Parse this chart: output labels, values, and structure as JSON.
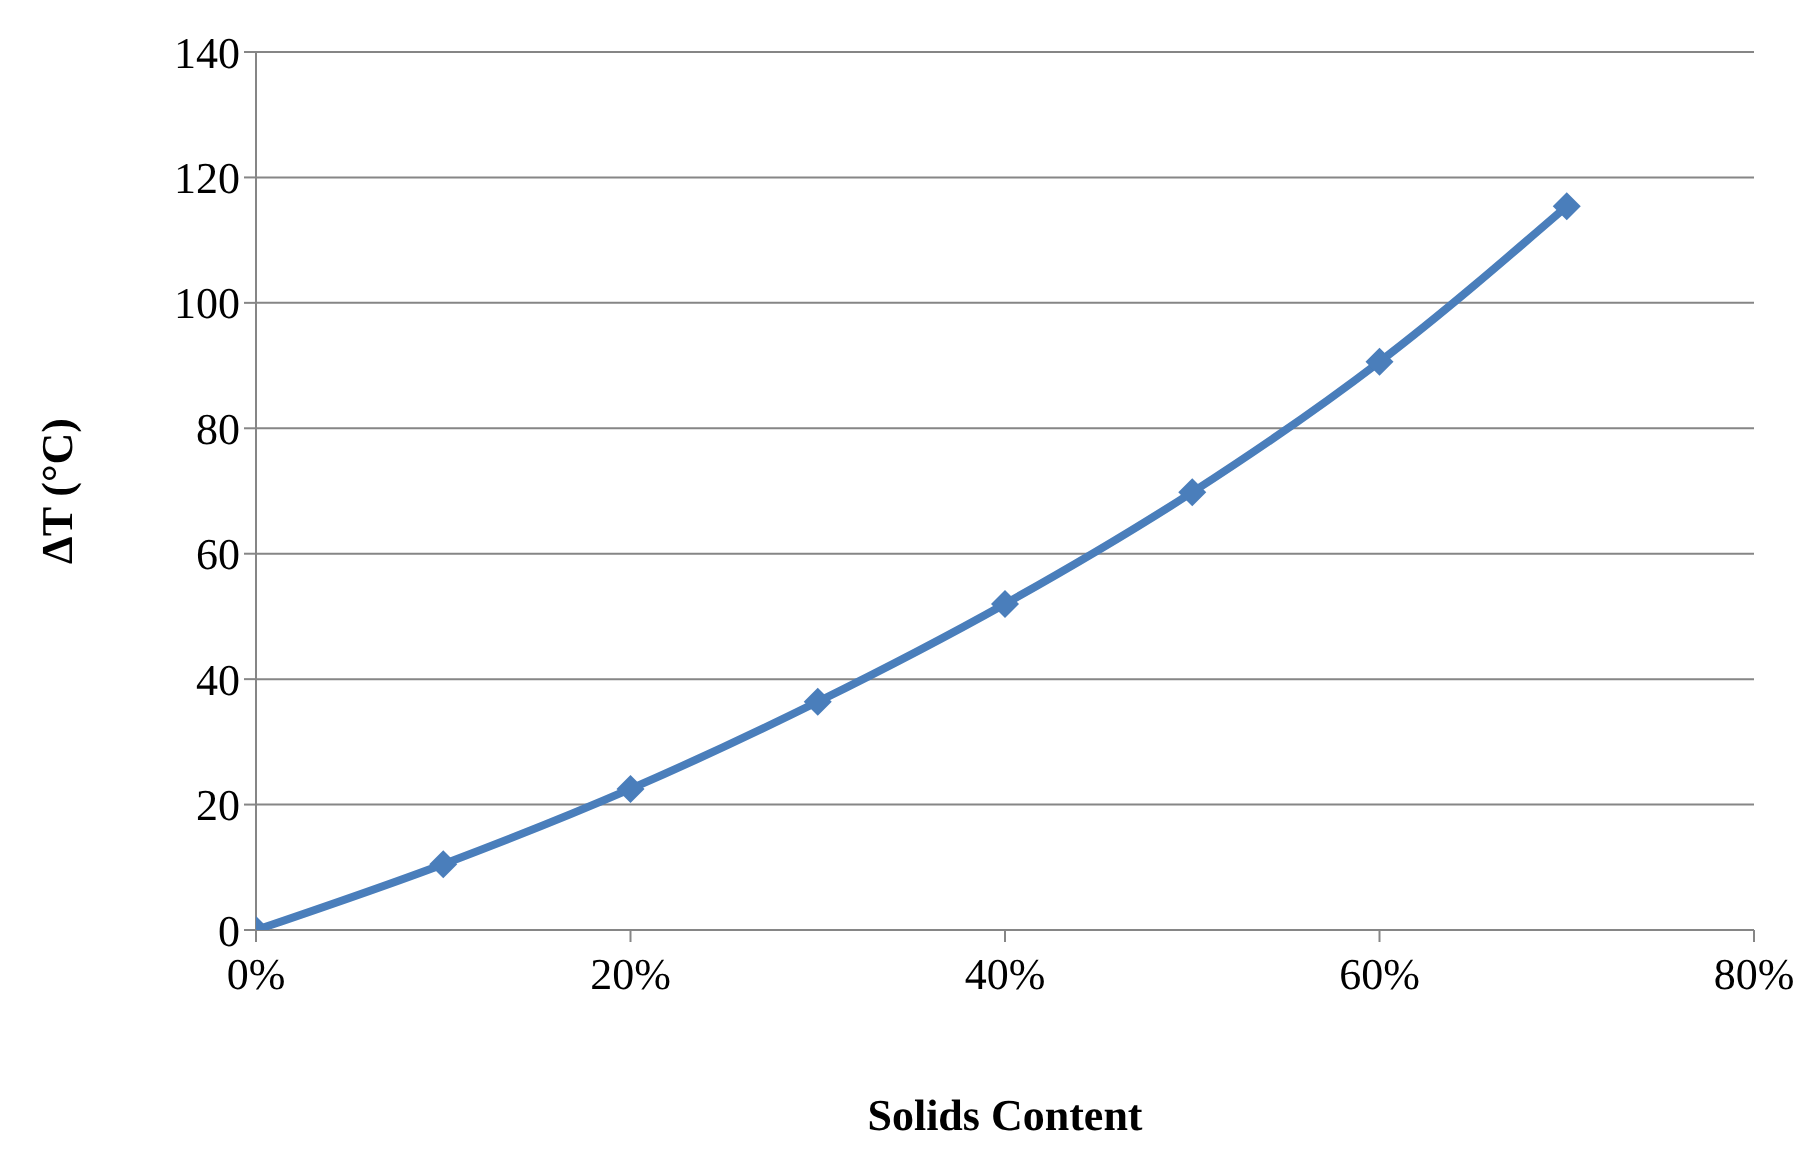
{
  "chart_data": {
    "type": "line",
    "xlabel": "Solids Content",
    "ylabel": "ΔT (°C)",
    "x": [
      0,
      10,
      20,
      30,
      40,
      50,
      60,
      70
    ],
    "series": [
      {
        "color": "#4a7ebb",
        "values": [
          0,
          10.5,
          22.5,
          36.4,
          52,
          69.8,
          90.6,
          115.4
        ]
      }
    ],
    "xlim": [
      0,
      80
    ],
    "xticks": [
      {
        "value": 0,
        "label": "0%"
      },
      {
        "value": 20,
        "label": "20%"
      },
      {
        "value": 40,
        "label": "40%"
      },
      {
        "value": 60,
        "label": "60%"
      },
      {
        "value": 80,
        "label": "80%"
      }
    ],
    "ylim": [
      0,
      140
    ],
    "yticks": [
      0,
      20,
      40,
      60,
      80,
      100,
      120,
      140
    ],
    "grid": "y",
    "legend": false,
    "marker": "diamond",
    "line_style": "solid"
  }
}
